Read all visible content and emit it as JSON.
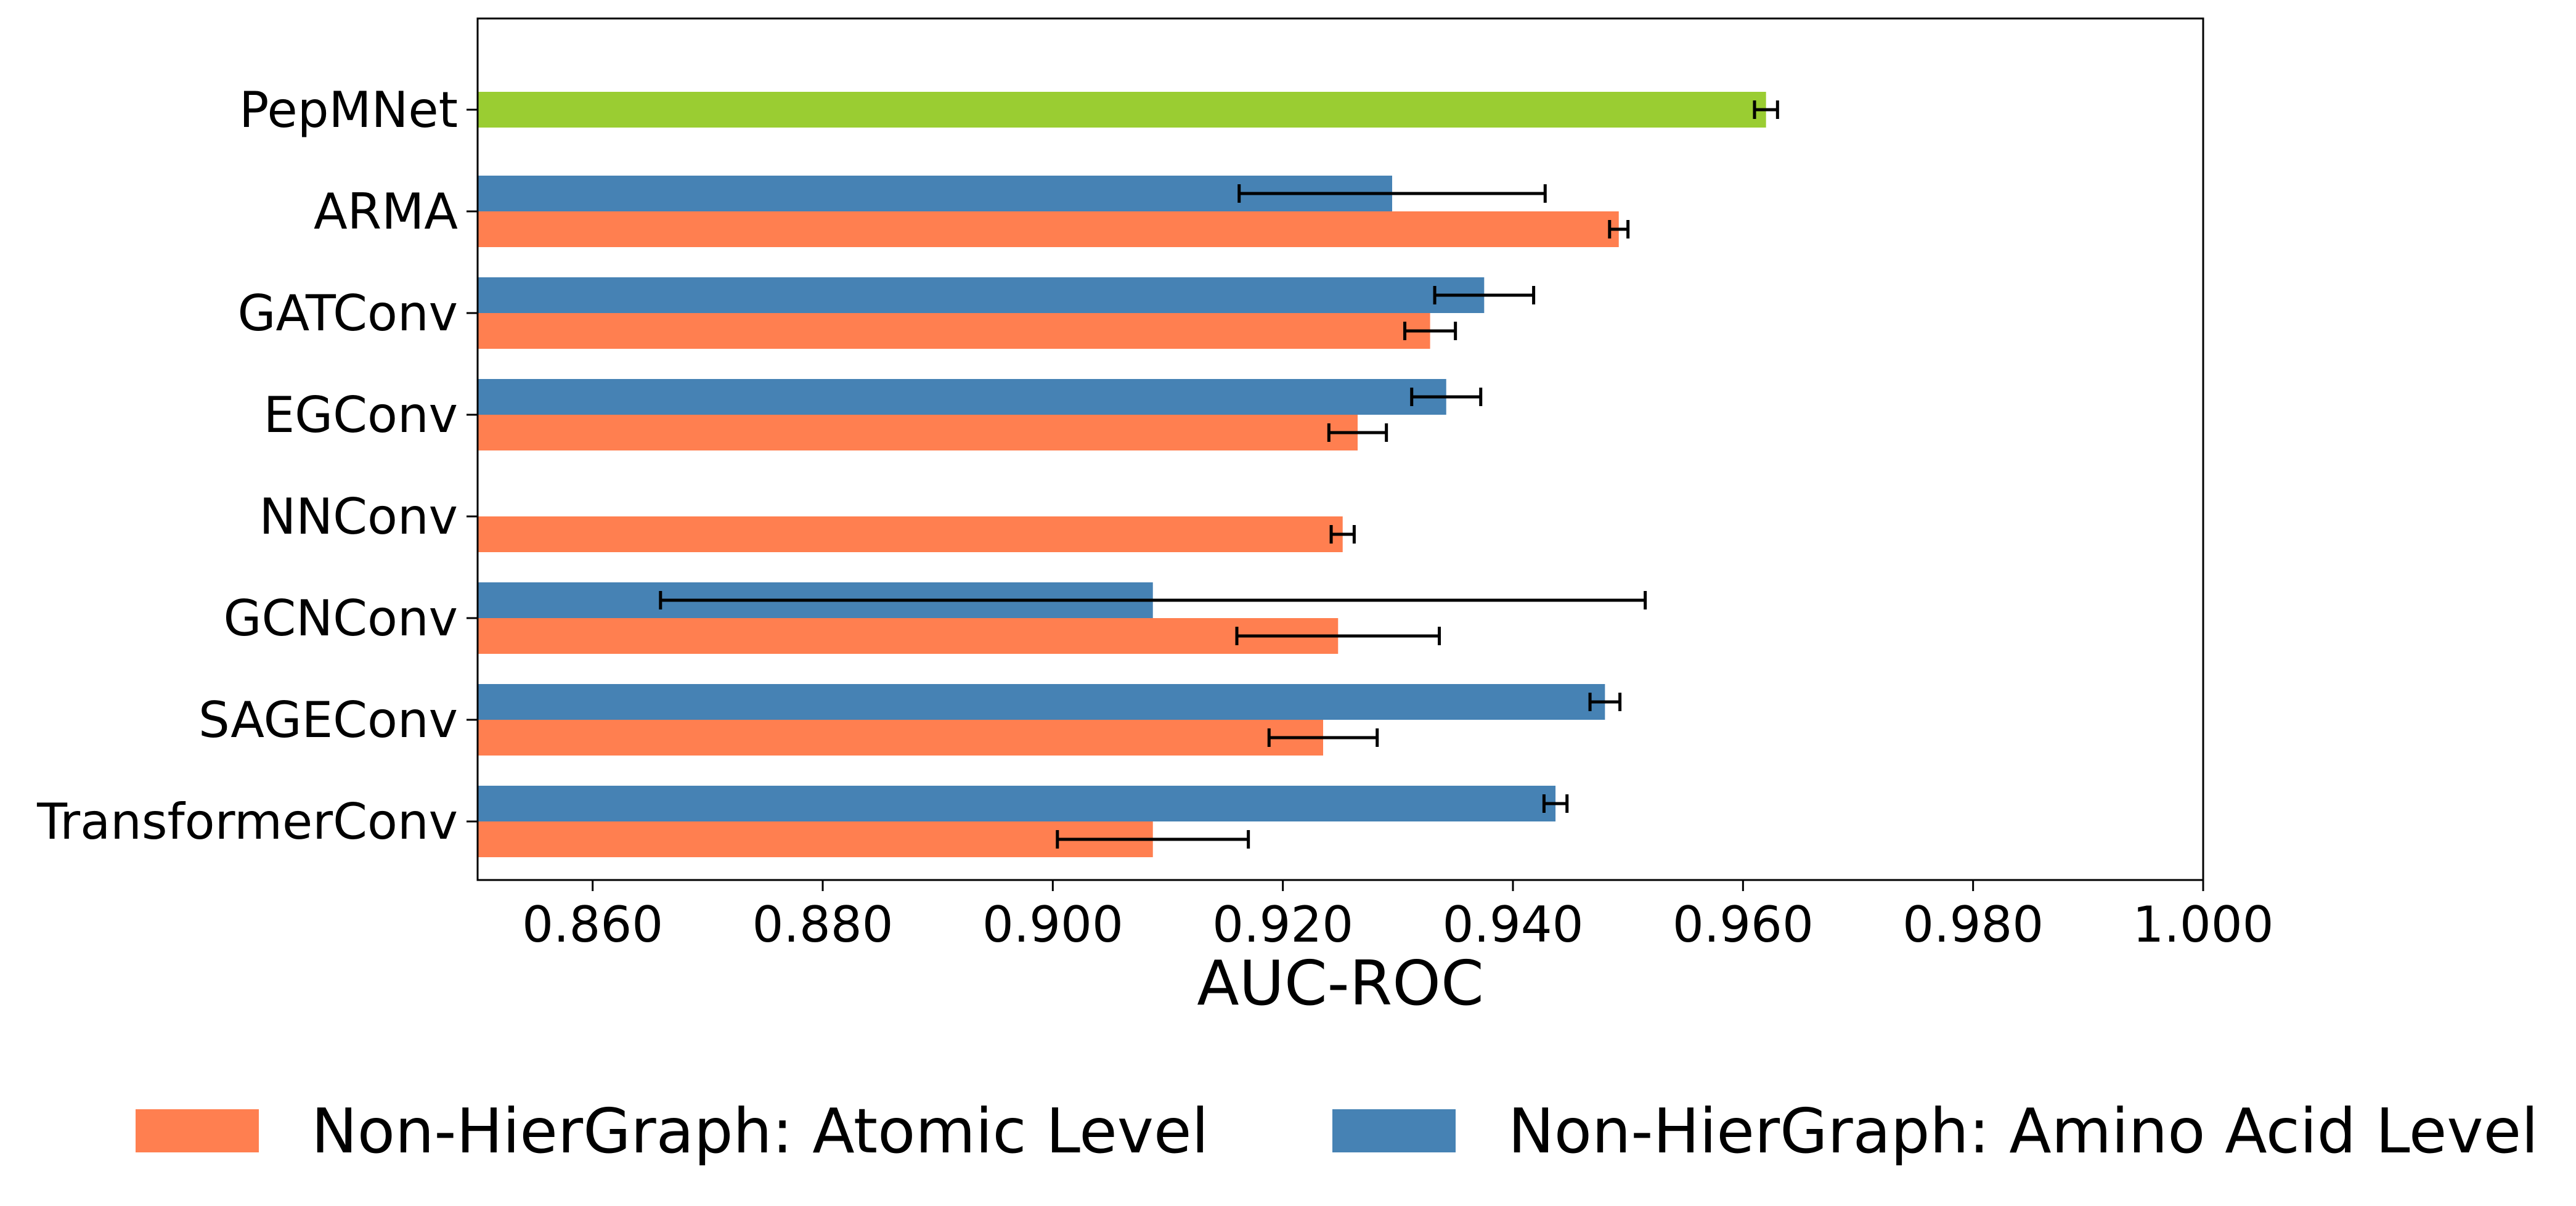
{
  "chart_data": {
    "type": "bar",
    "orientation": "horizontal",
    "categories": [
      "PepMNet",
      "ARMA",
      "GATConv",
      "EGConv",
      "NNConv",
      "GCNConv",
      "SAGEConv",
      "TransformerConv"
    ],
    "series": [
      {
        "name": "Non-HierGraph: Amino Acid Level",
        "color": "#4682b4",
        "values": [
          null,
          0.9295,
          0.9375,
          0.9342,
          null,
          0.9087,
          0.948,
          0.9437
        ],
        "errors": [
          null,
          0.0133,
          0.0043,
          0.003,
          null,
          0.0428,
          0.0013,
          0.001
        ]
      },
      {
        "name": "Non-HierGraph: Atomic Level",
        "color": "#ff7f50",
        "values": [
          null,
          0.9492,
          0.9328,
          0.9265,
          0.9252,
          0.9248,
          0.9235,
          0.9087
        ],
        "errors": [
          null,
          0.0008,
          0.0022,
          0.0025,
          0.001,
          0.0088,
          0.0047,
          0.0083
        ]
      },
      {
        "name": "",
        "color": "#9acd32",
        "values": [
          0.962,
          null,
          null,
          null,
          null,
          null,
          null,
          null
        ],
        "errors": [
          0.001,
          null,
          null,
          null,
          null,
          null,
          null,
          null
        ]
      }
    ],
    "xlabel": "AUC-ROC",
    "ylabel": "",
    "xlim": [
      0.85,
      1.0
    ],
    "xticks": [
      "0.860",
      "0.880",
      "0.900",
      "0.920",
      "0.940",
      "0.960",
      "0.980",
      "1.000"
    ],
    "grid": false,
    "legend": {
      "position": "bottom",
      "entries": [
        "Non-HierGraph: Atomic Level",
        "Non-HierGraph: Amino Acid Level"
      ]
    }
  }
}
